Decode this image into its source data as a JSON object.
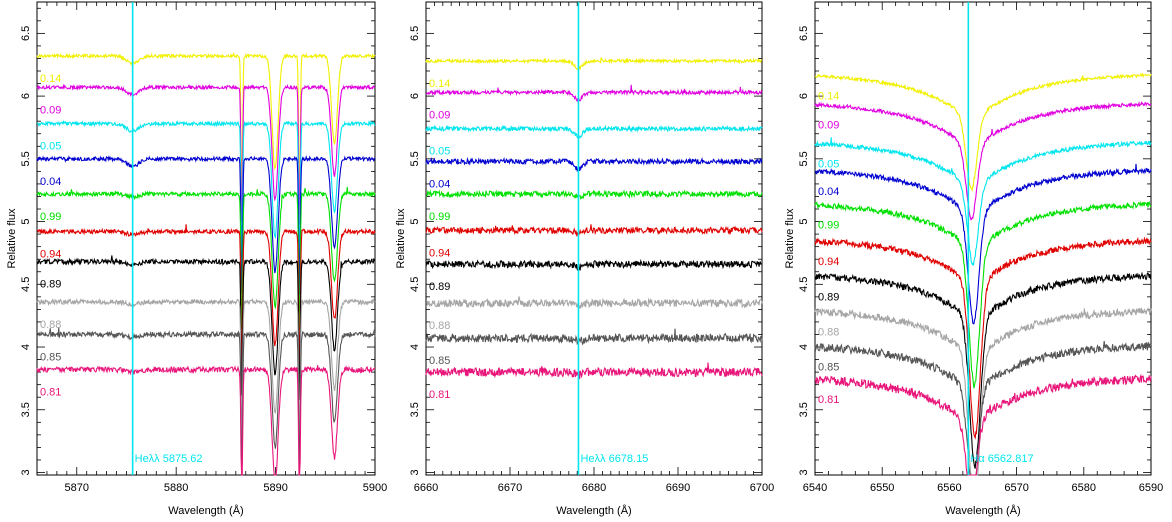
{
  "chart_data": [
    {
      "type": "line",
      "xlabel": "Wavelength (Å)",
      "ylabel": "Relative flux",
      "xlim": [
        5866,
        5900
      ],
      "ylim": [
        2.98,
        6.75
      ],
      "xticks": [
        5870,
        5880,
        5890,
        5900
      ],
      "yticks": [
        3,
        3.5,
        4,
        4.5,
        5,
        5.5,
        6,
        6.5
      ],
      "marker": {
        "x": 5875.62,
        "label": "Heλλ 5875.62",
        "color": "#00e5ee"
      },
      "lines": [
        {
          "center": 5875.62,
          "depth": 0.06,
          "sigma": 0.6
        },
        {
          "center": 5889.95,
          "depth": 0.9,
          "sigma": 0.3
        },
        {
          "center": 5895.92,
          "depth": 0.7,
          "sigma": 0.3
        },
        {
          "center": 5886.6,
          "depth": 1.1,
          "sigma": 0.08
        },
        {
          "center": 5892.4,
          "depth": 1.1,
          "sigma": 0.08
        }
      ],
      "series": [
        {
          "label": "0.14",
          "color": "#f0f000",
          "baseline": 6.32
        },
        {
          "label": "0.09",
          "color": "#e000e0",
          "baseline": 6.07
        },
        {
          "label": "0.05",
          "color": "#00e5ee",
          "baseline": 5.78
        },
        {
          "label": "0.04",
          "color": "#0000d0",
          "baseline": 5.5
        },
        {
          "label": "0.99",
          "color": "#00e000",
          "baseline": 5.22
        },
        {
          "label": "0.94",
          "color": "#e00000",
          "baseline": 4.92
        },
        {
          "label": "0.89",
          "color": "#000000",
          "baseline": 4.68
        },
        {
          "label": "0.88",
          "color": "#a6a6a6",
          "baseline": 4.36
        },
        {
          "label": "0.85",
          "color": "#555555",
          "baseline": 4.1
        },
        {
          "label": "0.81",
          "color": "#e8157a",
          "baseline": 3.82
        }
      ]
    },
    {
      "type": "line",
      "xlabel": "Wavelength (Å)",
      "ylabel": "Relative flux",
      "xlim": [
        6660,
        6700
      ],
      "ylim": [
        2.98,
        6.75
      ],
      "xticks": [
        6660,
        6670,
        6680,
        6690,
        6700
      ],
      "yticks": [
        3,
        3.5,
        4,
        4.5,
        5,
        5.5,
        6,
        6.5
      ],
      "marker": {
        "x": 6678.15,
        "label": "Heλλ 6678.15",
        "color": "#00e5ee"
      },
      "lines": [
        {
          "center": 6678.15,
          "depth": 0.06,
          "sigma": 0.5
        }
      ],
      "series": [
        {
          "label": "0.14",
          "color": "#f0f000",
          "baseline": 6.28
        },
        {
          "label": "0.09",
          "color": "#e000e0",
          "baseline": 6.03
        },
        {
          "label": "0.05",
          "color": "#00e5ee",
          "baseline": 5.74
        },
        {
          "label": "0.04",
          "color": "#0000d0",
          "baseline": 5.48
        },
        {
          "label": "0.99",
          "color": "#00e000",
          "baseline": 5.22
        },
        {
          "label": "0.94",
          "color": "#e00000",
          "baseline": 4.93
        },
        {
          "label": "0.89",
          "color": "#000000",
          "baseline": 4.66
        },
        {
          "label": "0.88",
          "color": "#a6a6a6",
          "baseline": 4.35
        },
        {
          "label": "0.85",
          "color": "#555555",
          "baseline": 4.07
        },
        {
          "label": "0.81",
          "color": "#e8157a",
          "baseline": 3.8
        }
      ]
    },
    {
      "type": "line",
      "xlabel": "Wavelength (Å)",
      "ylabel": "Relative flux",
      "xlim": [
        6540,
        6590
      ],
      "ylim": [
        2.98,
        6.75
      ],
      "xticks": [
        6540,
        6550,
        6560,
        6570,
        6580,
        6590
      ],
      "yticks": [
        3,
        3.5,
        4,
        4.5,
        5,
        5.5,
        6,
        6.5
      ],
      "marker": {
        "x": 6562.817,
        "label": "Hα 6562.817",
        "color": "#00e5ee"
      },
      "series": [
        {
          "label": "0.14",
          "color": "#f0f000",
          "baseline": 6.18
        },
        {
          "label": "0.09",
          "color": "#e000e0",
          "baseline": 5.95
        },
        {
          "label": "0.05",
          "color": "#00e5ee",
          "baseline": 5.64
        },
        {
          "label": "0.04",
          "color": "#0000d0",
          "baseline": 5.42
        },
        {
          "label": "0.99",
          "color": "#00e000",
          "baseline": 5.15
        },
        {
          "label": "0.94",
          "color": "#e00000",
          "baseline": 4.86
        },
        {
          "label": "0.89",
          "color": "#000000",
          "baseline": 4.58
        },
        {
          "label": "0.88",
          "color": "#a6a6a6",
          "baseline": 4.3
        },
        {
          "label": "0.85",
          "color": "#555555",
          "baseline": 4.02
        },
        {
          "label": "0.81",
          "color": "#e8157a",
          "baseline": 3.76
        }
      ],
      "halpha": {
        "center": [
          6563.3,
          6563.3,
          6563.5,
          6563.6,
          6563.7,
          6563.8,
          6563.8,
          6563.7,
          6563.5,
          6563.3
        ],
        "depth": [
          0.55,
          0.55,
          0.6,
          0.85,
          1.08,
          1.2,
          1.15,
          1.2,
          0.8,
          0.6
        ]
      }
    }
  ]
}
